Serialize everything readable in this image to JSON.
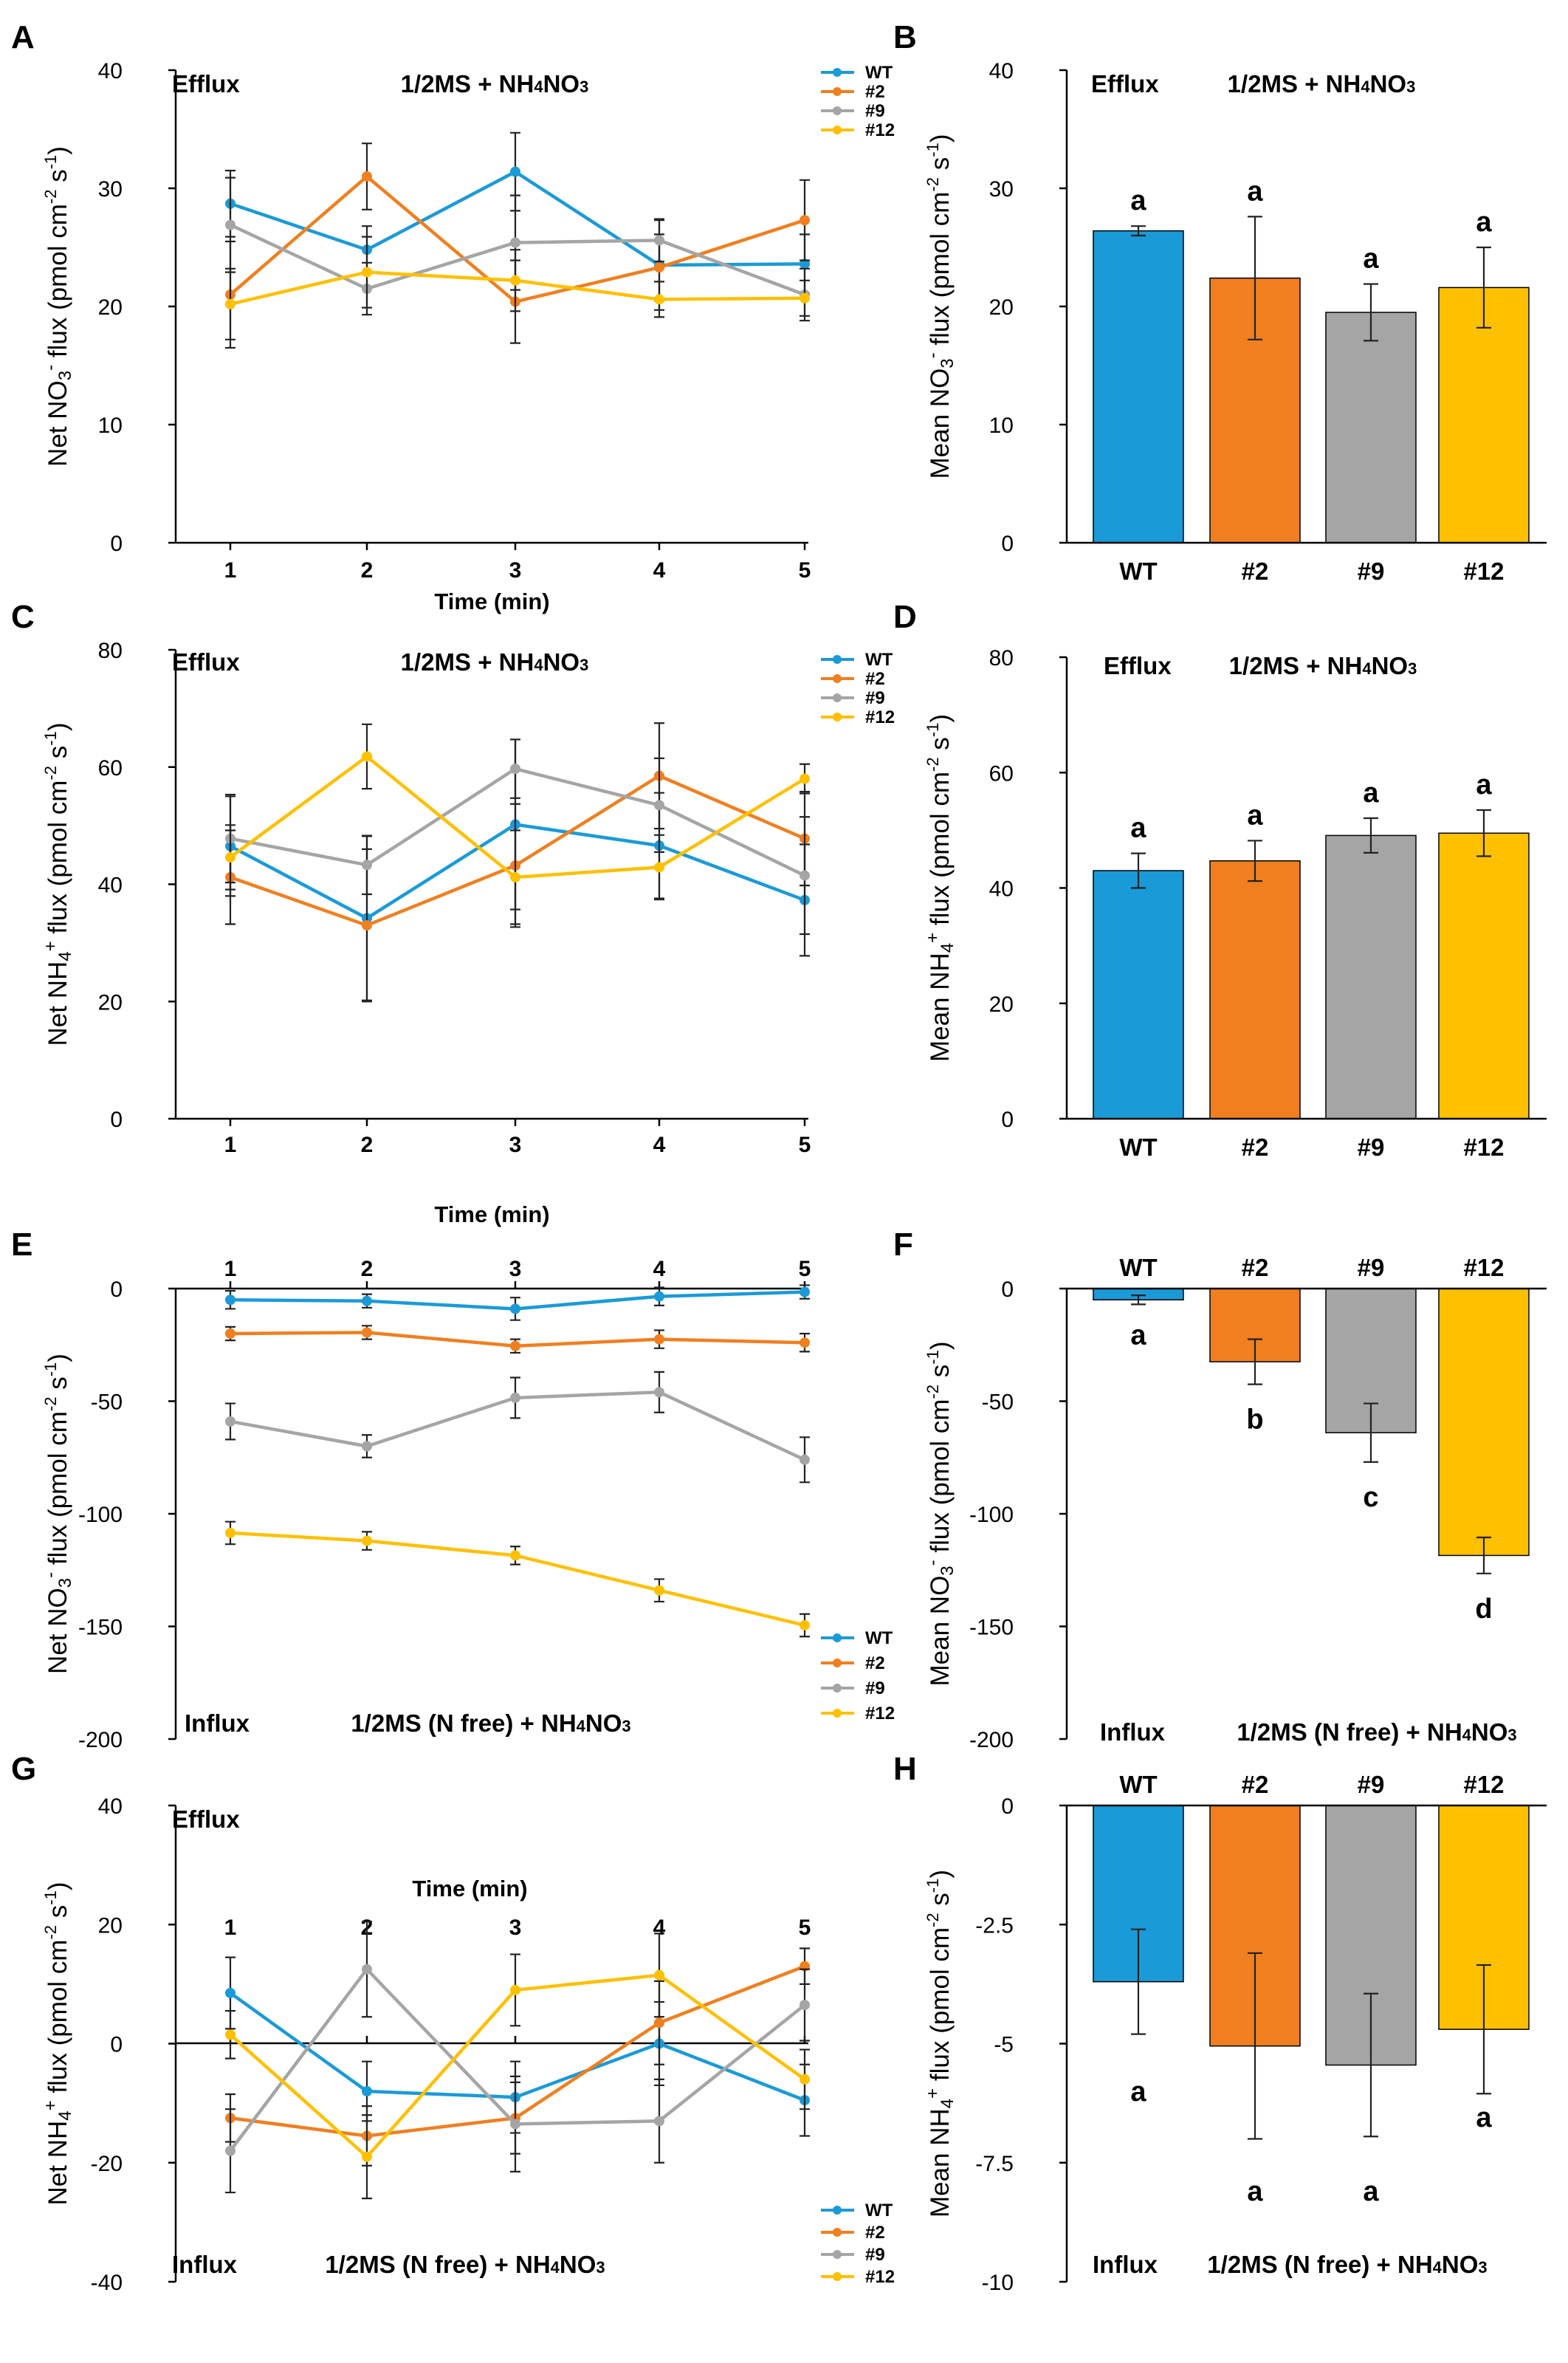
{
  "chart_data": [
    {
      "id": "A",
      "panel_label": "A",
      "type": "line",
      "flux_label": "NO3",
      "mode": "Efflux",
      "medium": "1/2MS + NH4NO3",
      "ylabel": "Net NO3- flux (pmol cm-2 s-1)",
      "xlabel": "Time (min)",
      "ylim": [
        0,
        40
      ],
      "yticks": [
        "0",
        "10",
        "20",
        "30",
        "40"
      ],
      "x": [
        "1",
        "2",
        "3",
        "4",
        "5"
      ],
      "legend_position": "top-right",
      "series": [
        {
          "name": "WT",
          "color": "#1B9AD8",
          "values": [
            28.7,
            24.8,
            31.4,
            23.5,
            23.6
          ],
          "errors": [
            2.8,
            2.0,
            3.3,
            3.8,
            2.5
          ]
        },
        {
          "name": "#2",
          "color": "#F07F20",
          "values": [
            21.0,
            31.0,
            20.4,
            23.3,
            27.3
          ],
          "errors": [
            4.5,
            2.8,
            3.5,
            2.8,
            3.4
          ]
        },
        {
          "name": "#9",
          "color": "#A5A5A5",
          "values": [
            26.9,
            21.5,
            25.4,
            25.6,
            21.0
          ],
          "errors": [
            4.0,
            2.2,
            4.0,
            1.8,
            2.2
          ]
        },
        {
          "name": "#12",
          "color": "#FFC000",
          "values": [
            20.2,
            22.9,
            22.2,
            20.6,
            20.7
          ],
          "errors": [
            3.0,
            3.0,
            2.6,
            1.5,
            1.5
          ]
        }
      ]
    },
    {
      "id": "B",
      "panel_label": "B",
      "type": "bar",
      "flux_label": "NO3",
      "mode": "Efflux",
      "medium": "1/2MS + NH4NO3",
      "ylabel": "Mean NO3- flux (pmol cm-2 s-1)",
      "ylim": [
        0,
        40
      ],
      "yticks": [
        "0",
        "10",
        "20",
        "30",
        "40"
      ],
      "categories": [
        "WT",
        "#2",
        "#9",
        "#12"
      ],
      "colors": [
        "#1B9AD8",
        "#F07F20",
        "#A5A5A5",
        "#FFC000"
      ],
      "values": [
        26.4,
        22.4,
        19.5,
        21.6
      ],
      "errors": [
        0.4,
        5.2,
        2.4,
        3.4
      ],
      "significance": [
        "a",
        "a",
        "a",
        "a"
      ]
    },
    {
      "id": "C",
      "panel_label": "C",
      "type": "line",
      "flux_label": "NH4",
      "mode": "Efflux",
      "medium": "1/2MS + NH4NO3",
      "ylabel": "Net NH4+ flux (pmol cm-2 s-1)",
      "xlabel": "Time (min)",
      "ylim": [
        0,
        80
      ],
      "yticks": [
        "0",
        "20",
        "40",
        "60",
        "80"
      ],
      "x": [
        "1",
        "2",
        "3",
        "4",
        "5"
      ],
      "legend_position": "top-right",
      "series": [
        {
          "name": "WT",
          "color": "#1B9AD8",
          "values": [
            46.5,
            34.2,
            50.2,
            46.6,
            37.3
          ],
          "errors": [
            8.5,
            14.0,
            14.5,
            9.0,
            9.5
          ]
        },
        {
          "name": "#2",
          "color": "#F07F20",
          "values": [
            41.2,
            33.0,
            43.2,
            58.5,
            47.8
          ],
          "errors": [
            8.0,
            13.0,
            10.5,
            9.0,
            8.0
          ]
        },
        {
          "name": "#9",
          "color": "#A5A5A5",
          "values": [
            47.8,
            43.3,
            59.7,
            53.5,
            41.5
          ],
          "errors": [
            7.5,
            5.0,
            5.0,
            8.0,
            10.0
          ]
        },
        {
          "name": "#12",
          "color": "#FFC000",
          "values": [
            44.6,
            61.8,
            41.2,
            42.9,
            58.0
          ],
          "errors": [
            5.5,
            5.5,
            8.0,
            5.5,
            2.5
          ]
        }
      ]
    },
    {
      "id": "D",
      "panel_label": "D",
      "type": "bar",
      "flux_label": "NH4",
      "mode": "Efflux",
      "medium": "1/2MS + NH4NO3",
      "ylabel": "Mean NH4+ flux (pmol cm-2 s-1)",
      "ylim": [
        0,
        80
      ],
      "yticks": [
        "0",
        "20",
        "40",
        "60",
        "80"
      ],
      "categories": [
        "WT",
        "#2",
        "#9",
        "#12"
      ],
      "colors": [
        "#1B9AD8",
        "#F07F20",
        "#A5A5A5",
        "#FFC000"
      ],
      "values": [
        43.0,
        44.7,
        49.1,
        49.5
      ],
      "errors": [
        3.0,
        3.5,
        3.0,
        4.0
      ],
      "significance": [
        "a",
        "a",
        "a",
        "a"
      ]
    },
    {
      "id": "E",
      "panel_label": "E",
      "type": "line",
      "flux_label": "NO3",
      "mode": "Influx",
      "medium": "1/2MS (N free) + NH4NO3",
      "ylabel": "Net NO3- flux (pmol cm-2 s-1)",
      "ylim": [
        -200,
        0
      ],
      "yticks": [
        "-200",
        "-150",
        "-100",
        "-50",
        "0"
      ],
      "x": [
        "1",
        "2",
        "3",
        "4",
        "5"
      ],
      "legend_position": "bottom-right",
      "series": [
        {
          "name": "WT",
          "color": "#1B9AD8",
          "values": [
            -5,
            -5.5,
            -9,
            -3.5,
            -1.5
          ],
          "errors": [
            4,
            3,
            5,
            4,
            3
          ]
        },
        {
          "name": "#2",
          "color": "#F07F20",
          "values": [
            -20,
            -19.5,
            -25.5,
            -22.5,
            -24
          ],
          "errors": [
            3,
            3,
            3,
            4,
            4
          ]
        },
        {
          "name": "#9",
          "color": "#A5A5A5",
          "values": [
            -59,
            -70,
            -48.5,
            -46,
            -76
          ],
          "errors": [
            8,
            5,
            9,
            9,
            10
          ]
        },
        {
          "name": "#12",
          "color": "#FFC000",
          "values": [
            -108.5,
            -112,
            -118.5,
            -134,
            -149.5
          ],
          "errors": [
            5,
            4,
            4,
            5,
            5
          ]
        }
      ]
    },
    {
      "id": "F",
      "panel_label": "F",
      "type": "bar",
      "flux_label": "NO3",
      "mode": "Influx",
      "medium": "1/2MS (N free) + NH4NO3",
      "ylabel": "Mean NO3- flux (pmol cm-2 s-1)",
      "ylim": [
        -200,
        0
      ],
      "yticks": [
        "-200",
        "-150",
        "-100",
        "-50",
        "0"
      ],
      "categories": [
        "WT",
        "#2",
        "#9",
        "#12"
      ],
      "colors": [
        "#1B9AD8",
        "#F07F20",
        "#A5A5A5",
        "#FFC000"
      ],
      "values": [
        -5,
        -32.5,
        -64,
        -118.5
      ],
      "errors": [
        2,
        10,
        13,
        8
      ],
      "significance": [
        "a",
        "b",
        "c",
        "d"
      ]
    },
    {
      "id": "G",
      "panel_label": "G",
      "type": "line",
      "flux_label": "NH4",
      "mode": "Efflux",
      "mode2": "Influx",
      "medium": "1/2MS (N free) + NH4NO3",
      "ylabel": "Net NH4+ flux (pmol cm-2 s-1)",
      "xlabel": "Time (min)",
      "ylim": [
        -40,
        40
      ],
      "yticks": [
        "-40",
        "-20",
        "0",
        "20",
        "40"
      ],
      "x": [
        "1",
        "2",
        "3",
        "4",
        "5"
      ],
      "legend_position": "bottom-right",
      "series": [
        {
          "name": "WT",
          "color": "#1B9AD8",
          "values": [
            8.5,
            -8,
            -9,
            0,
            -9.5
          ],
          "errors": [
            6,
            5,
            6,
            7,
            6
          ]
        },
        {
          "name": "#2",
          "color": "#F07F20",
          "values": [
            -12.5,
            -15.5,
            -12.5,
            3.5,
            13
          ],
          "errors": [
            4,
            5,
            6,
            7,
            3
          ]
        },
        {
          "name": "#9",
          "color": "#A5A5A5",
          "values": [
            -18,
            12.5,
            -13.5,
            -13,
            6.5
          ],
          "errors": [
            7,
            8,
            8,
            7,
            6
          ]
        },
        {
          "name": "#12",
          "color": "#FFC000",
          "values": [
            1.5,
            -19,
            9,
            11.5,
            -6
          ],
          "errors": [
            4,
            7,
            6,
            7,
            5
          ]
        }
      ]
    },
    {
      "id": "H",
      "panel_label": "H",
      "type": "bar",
      "flux_label": "NH4",
      "mode": "Influx",
      "medium": "1/2MS (N free) + NH4NO3",
      "ylabel": "Mean NH4+ flux (pmol cm-2 s-1)",
      "ylim": [
        -10,
        0
      ],
      "yticks": [
        "-10",
        "-7.5",
        "-5",
        "-2.5",
        "0"
      ],
      "categories": [
        "WT",
        "#2",
        "#9",
        "#12"
      ],
      "colors": [
        "#1B9AD8",
        "#F07F20",
        "#A5A5A5",
        "#FFC000"
      ],
      "values": [
        -3.7,
        -5.05,
        -5.45,
        -4.7
      ],
      "errors": [
        1.1,
        1.95,
        1.5,
        1.35
      ],
      "significance": [
        "a",
        "a",
        "a",
        "a"
      ]
    }
  ]
}
